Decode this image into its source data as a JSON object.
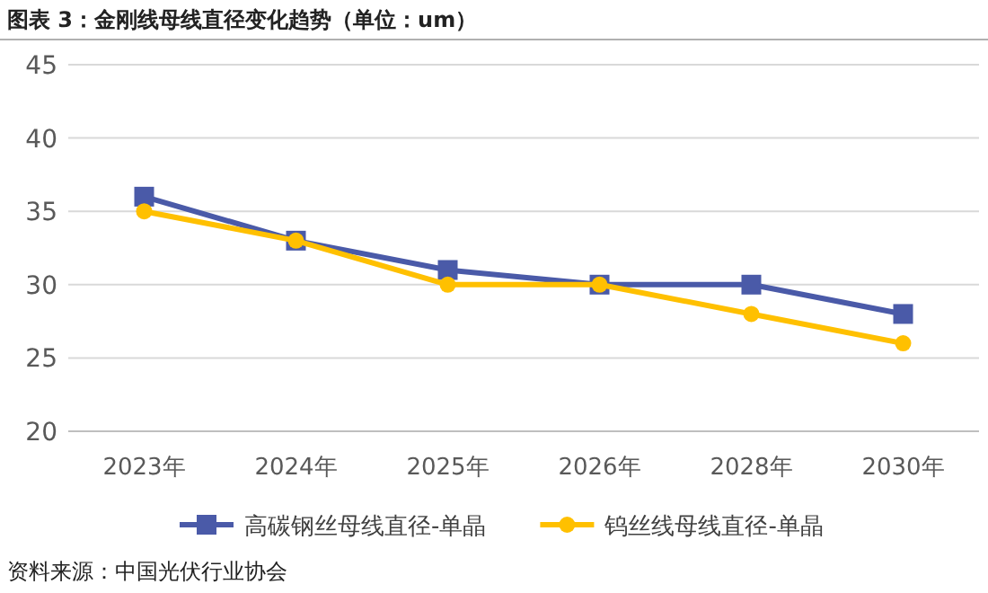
{
  "chart_data": {
    "type": "line",
    "title": "图表 3：金刚线母线直径变化趋势（单位：um）",
    "categories": [
      "2023年",
      "2024年",
      "2025年",
      "2026年",
      "2028年",
      "2030年"
    ],
    "series": [
      {
        "name": "高碳钢丝母线直径-单晶",
        "color": "#4a5aa8",
        "marker": "square",
        "values": [
          36,
          33,
          31,
          30,
          30,
          28
        ]
      },
      {
        "name": "钨丝线母线直径-单晶",
        "color": "#ffc000",
        "marker": "circle",
        "values": [
          35,
          33,
          30,
          30,
          28,
          26
        ]
      }
    ],
    "ylim": [
      20,
      45
    ],
    "yticks": [
      20,
      25,
      30,
      35,
      40,
      45
    ],
    "grid": "y",
    "legend": "bottom",
    "annotations": [
      "资料来源：中国光伏行业协会"
    ]
  }
}
